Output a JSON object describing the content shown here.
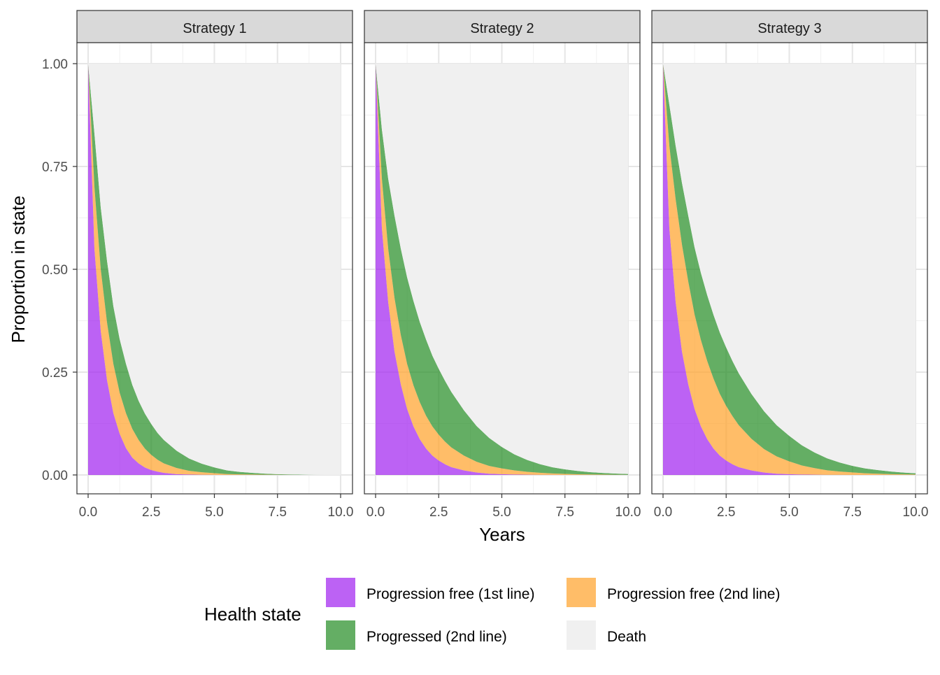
{
  "chart_data": {
    "type": "area",
    "stacked": true,
    "x": [
      0,
      0.25,
      0.5,
      0.75,
      1,
      1.25,
      1.5,
      1.75,
      2,
      2.25,
      2.5,
      2.75,
      3,
      3.5,
      4,
      4.5,
      5,
      5.5,
      6,
      6.5,
      7,
      7.5,
      8,
      8.5,
      9,
      9.5,
      10
    ],
    "xlabel": "Years",
    "ylabel": "Proportion in state",
    "xlim": [
      0,
      10
    ],
    "ylim": [
      0,
      1
    ],
    "x_ticks": [
      0,
      2.5,
      5,
      7.5,
      10
    ],
    "x_tick_labels": [
      "0.0",
      "2.5",
      "5.0",
      "7.5",
      "10.0"
    ],
    "y_ticks": [
      0,
      0.25,
      0.5,
      0.75,
      1
    ],
    "y_tick_labels": [
      "0.00",
      "0.25",
      "0.50",
      "0.75",
      "1.00"
    ],
    "grid": true,
    "legend": {
      "title": "Health state",
      "position": "bottom",
      "items": [
        {
          "name": "Progression free (1st line)",
          "color": "#a020f0"
        },
        {
          "name": "Progression free (2nd line)",
          "color": "#ffa128"
        },
        {
          "name": "Progressed (2nd line)",
          "color": "#228b22"
        },
        {
          "name": "Death",
          "color": "#f0f0f0"
        }
      ]
    },
    "panels": [
      {
        "title": "Strategy 1",
        "series": [
          {
            "name": "Progression free (1st line)",
            "values": [
              1.0,
              0.55,
              0.35,
              0.23,
              0.15,
              0.1,
              0.065,
              0.042,
              0.028,
              0.018,
              0.012,
              0.008,
              0.005,
              0.002,
              0.001,
              0.0005,
              0.0002,
              0.0001,
              0,
              0,
              0,
              0,
              0,
              0,
              0,
              0,
              0
            ]
          },
          {
            "name": "Progression free (2nd line)",
            "values": [
              0,
              0.15,
              0.15,
              0.14,
              0.12,
              0.1,
              0.085,
              0.07,
              0.057,
              0.046,
              0.037,
              0.029,
              0.023,
              0.015,
              0.009,
              0.006,
              0.004,
              0.002,
              0.0015,
              0.001,
              0.0006,
              0.0004,
              0.0002,
              0.0001,
              0,
              0,
              0
            ]
          },
          {
            "name": "Progressed (2nd line)",
            "values": [
              0,
              0.13,
              0.15,
              0.15,
              0.14,
              0.13,
              0.12,
              0.107,
              0.095,
              0.085,
              0.075,
              0.065,
              0.057,
              0.042,
              0.03,
              0.021,
              0.014,
              0.009,
              0.006,
              0.004,
              0.0025,
              0.0015,
              0.001,
              0.0006,
              0.0003,
              0.0001,
              0
            ]
          },
          {
            "name": "Death",
            "values": [
              0,
              0.17,
              0.35,
              0.48,
              0.59,
              0.67,
              0.73,
              0.781,
              0.82,
              0.851,
              0.876,
              0.898,
              0.915,
              0.941,
              0.96,
              0.9725,
              0.9818,
              0.9889,
              0.9925,
              0.995,
              0.9969,
              0.9981,
              0.9988,
              0.9993,
              0.9997,
              0.9999,
              1.0
            ]
          }
        ]
      },
      {
        "title": "Strategy 2",
        "series": [
          {
            "name": "Progression free (1st line)",
            "values": [
              1.0,
              0.6,
              0.42,
              0.3,
              0.22,
              0.16,
              0.118,
              0.087,
              0.064,
              0.047,
              0.035,
              0.026,
              0.019,
              0.011,
              0.006,
              0.003,
              0.002,
              0.001,
              0.0006,
              0.0003,
              0.0002,
              0.0001,
              0,
              0,
              0,
              0,
              0
            ]
          },
          {
            "name": "Progression free (2nd line)",
            "values": [
              0,
              0.12,
              0.13,
              0.13,
              0.12,
              0.11,
              0.1,
              0.09,
              0.08,
              0.071,
              0.063,
              0.055,
              0.048,
              0.036,
              0.026,
              0.019,
              0.014,
              0.01,
              0.007,
              0.005,
              0.0035,
              0.0025,
              0.0017,
              0.0012,
              0.0008,
              0.0005,
              0.0003
            ]
          },
          {
            "name": "Progressed (2nd line)",
            "values": [
              0,
              0.12,
              0.17,
              0.2,
              0.21,
              0.21,
              0.205,
              0.195,
              0.185,
              0.172,
              0.16,
              0.148,
              0.135,
              0.11,
              0.087,
              0.068,
              0.052,
              0.039,
              0.029,
              0.021,
              0.015,
              0.011,
              0.008,
              0.0055,
              0.004,
              0.0028,
              0.002
            ]
          },
          {
            "name": "Death",
            "values": [
              0,
              0.16,
              0.28,
              0.37,
              0.45,
              0.52,
              0.577,
              0.628,
              0.671,
              0.71,
              0.742,
              0.771,
              0.798,
              0.843,
              0.881,
              0.91,
              0.932,
              0.95,
              0.9634,
              0.9737,
              0.9813,
              0.9864,
              0.9903,
              0.9933,
              0.9952,
              0.9967,
              0.9977
            ]
          }
        ]
      },
      {
        "title": "Strategy 3",
        "series": [
          {
            "name": "Progression free (1st line)",
            "values": [
              1.0,
              0.6,
              0.42,
              0.3,
              0.22,
              0.16,
              0.118,
              0.087,
              0.064,
              0.047,
              0.035,
              0.026,
              0.019,
              0.011,
              0.006,
              0.003,
              0.002,
              0.001,
              0.0006,
              0.0003,
              0.0002,
              0.0001,
              0,
              0,
              0,
              0,
              0
            ]
          },
          {
            "name": "Progression free (2nd line)",
            "values": [
              0,
              0.2,
              0.25,
              0.26,
              0.25,
              0.23,
              0.21,
              0.19,
              0.17,
              0.15,
              0.133,
              0.117,
              0.102,
              0.077,
              0.057,
              0.042,
              0.031,
              0.022,
              0.016,
              0.011,
              0.008,
              0.006,
              0.004,
              0.003,
              0.002,
              0.0015,
              0.001
            ]
          },
          {
            "name": "Progressed (2nd line)",
            "values": [
              0,
              0.1,
              0.13,
              0.15,
              0.16,
              0.163,
              0.163,
              0.16,
              0.155,
              0.149,
              0.142,
              0.134,
              0.126,
              0.109,
              0.092,
              0.076,
              0.062,
              0.049,
              0.038,
              0.029,
              0.022,
              0.016,
              0.012,
              0.009,
              0.0065,
              0.0045,
              0.003
            ]
          },
          {
            "name": "Death",
            "values": [
              0,
              0.1,
              0.2,
              0.29,
              0.37,
              0.447,
              0.509,
              0.563,
              0.611,
              0.654,
              0.69,
              0.723,
              0.753,
              0.803,
              0.845,
              0.879,
              0.905,
              0.928,
              0.9454,
              0.9597,
              0.9698,
              0.9779,
              0.984,
              0.988,
              0.9915,
              0.994,
              0.996
            ]
          }
        ]
      }
    ]
  }
}
